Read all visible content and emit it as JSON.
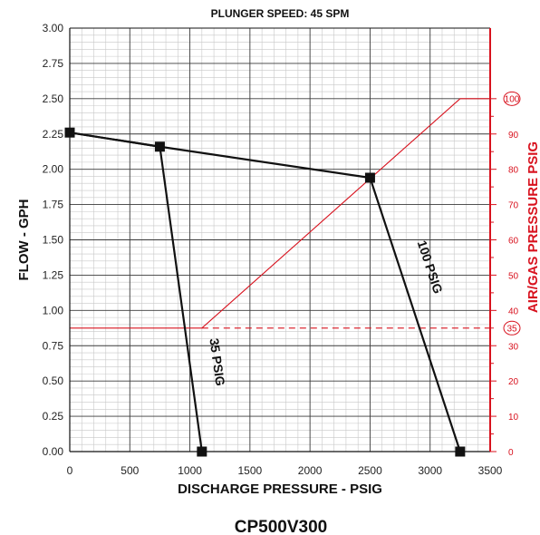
{
  "chart_data": {
    "type": "line",
    "title": "PLUNGER SPEED: 45 SPM",
    "caption": "CP500V300",
    "xlabel": "DISCHARGE PRESSURE - PSIG",
    "ylabel": "FLOW - GPH",
    "y2label": "AIR/GAS PRESSURE PSIG",
    "xlim": [
      0,
      3500
    ],
    "ylim": [
      0,
      3.0
    ],
    "y2lim": [
      0,
      120
    ],
    "xticks": [
      "0",
      "500",
      "1000",
      "1500",
      "2000",
      "2500",
      "3000",
      "3500"
    ],
    "yticks": [
      "0.00",
      "0.25",
      "0.50",
      "0.75",
      "1.00",
      "1.25",
      "1.50",
      "1.75",
      "2.00",
      "2.25",
      "2.50",
      "2.75",
      "3.00"
    ],
    "y2ticks": [
      "0",
      "10",
      "20",
      "30",
      "40",
      "50",
      "60",
      "70",
      "80",
      "90"
    ],
    "y2_circled": [
      "35",
      "100"
    ],
    "grid": true,
    "series": [
      {
        "name": "35 PSIG",
        "color": "#111111",
        "x": [
          0,
          750,
          1100
        ],
        "y": [
          2.26,
          2.16,
          0.0
        ]
      },
      {
        "name": "100 PSIG",
        "color": "#111111",
        "x": [
          0,
          750,
          2500,
          3250
        ],
        "y": [
          2.26,
          2.16,
          1.94,
          0.0
        ]
      }
    ],
    "air_gas_curve": {
      "color": "#d8121e",
      "x": [
        0,
        1100,
        3250,
        3500
      ],
      "y2": [
        35,
        35,
        100,
        100
      ]
    },
    "reference_line": {
      "y2": 35,
      "x_from": 1100,
      "x_to": 3500,
      "style": "dashed",
      "color": "#d8121e"
    },
    "markers": [
      {
        "x": 0,
        "y": 2.26
      },
      {
        "x": 750,
        "y": 2.16
      },
      {
        "x": 2500,
        "y": 1.94
      },
      {
        "x": 1100,
        "y": 0.0
      },
      {
        "x": 3250,
        "y": 0.0
      }
    ]
  }
}
